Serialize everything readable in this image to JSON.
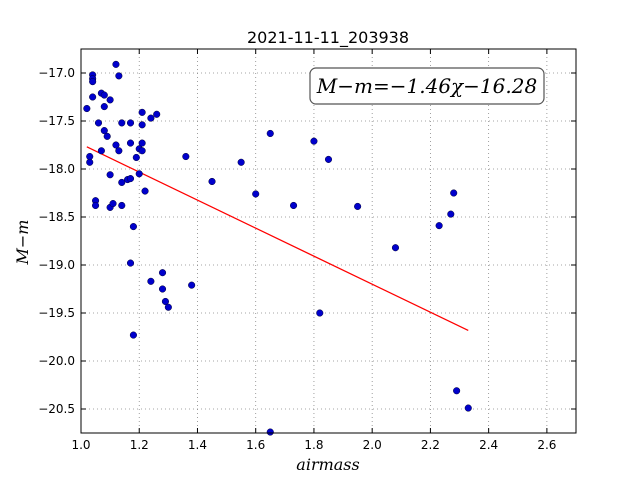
{
  "chart_data": {
    "type": "scatter",
    "title": "2021-11-11_203938",
    "xlabel": "airmass",
    "ylabel": "M−m",
    "xlim": [
      1.0,
      2.7
    ],
    "ylim": [
      -20.75,
      -16.75
    ],
    "y_inverted": true,
    "grid": true,
    "xticks": [
      "1.0",
      "1.2",
      "1.4",
      "1.6",
      "1.8",
      "2.0",
      "2.2",
      "2.4",
      "2.6"
    ],
    "yticks": [
      "−17.0",
      "−17.5",
      "−18.0",
      "−18.5",
      "−19.0",
      "−19.5",
      "−20.0",
      "−20.5"
    ],
    "annotation": "M−m=−1.46χ−16.28",
    "fit": {
      "slope": -1.46,
      "intercept": -16.28,
      "x_range": [
        1.02,
        2.33
      ],
      "color": "#ff0000"
    },
    "point_color": "#0000cc",
    "points": [
      [
        1.02,
        -17.37
      ],
      [
        1.03,
        -17.93
      ],
      [
        1.03,
        -17.87
      ],
      [
        1.04,
        -17.25
      ],
      [
        1.04,
        -17.02
      ],
      [
        1.04,
        -17.06
      ],
      [
        1.04,
        -17.09
      ],
      [
        1.05,
        -18.33
      ],
      [
        1.05,
        -18.38
      ],
      [
        1.06,
        -17.52
      ],
      [
        1.07,
        -17.81
      ],
      [
        1.07,
        -17.21
      ],
      [
        1.08,
        -17.23
      ],
      [
        1.08,
        -17.35
      ],
      [
        1.08,
        -17.6
      ],
      [
        1.09,
        -17.66
      ],
      [
        1.1,
        -17.28
      ],
      [
        1.1,
        -18.06
      ],
      [
        1.1,
        -18.4
      ],
      [
        1.11,
        -18.36
      ],
      [
        1.12,
        -16.91
      ],
      [
        1.12,
        -17.75
      ],
      [
        1.13,
        -17.03
      ],
      [
        1.13,
        -17.81
      ],
      [
        1.14,
        -17.52
      ],
      [
        1.14,
        -18.38
      ],
      [
        1.14,
        -18.14
      ],
      [
        1.16,
        -18.11
      ],
      [
        1.17,
        -17.52
      ],
      [
        1.17,
        -17.73
      ],
      [
        1.17,
        -18.1
      ],
      [
        1.17,
        -18.98
      ],
      [
        1.18,
        -19.73
      ],
      [
        1.18,
        -18.6
      ],
      [
        1.19,
        -17.88
      ],
      [
        1.2,
        -17.79
      ],
      [
        1.2,
        -18.05
      ],
      [
        1.21,
        -17.81
      ],
      [
        1.21,
        -17.73
      ],
      [
        1.21,
        -17.41
      ],
      [
        1.21,
        -17.54
      ],
      [
        1.22,
        -18.23
      ],
      [
        1.24,
        -17.47
      ],
      [
        1.24,
        -19.17
      ],
      [
        1.26,
        -17.43
      ],
      [
        1.28,
        -19.08
      ],
      [
        1.28,
        -19.25
      ],
      [
        1.29,
        -19.38
      ],
      [
        1.3,
        -19.44
      ],
      [
        1.36,
        -17.87
      ],
      [
        1.38,
        -19.21
      ],
      [
        1.45,
        -18.13
      ],
      [
        1.55,
        -17.93
      ],
      [
        1.6,
        -18.26
      ],
      [
        1.65,
        -17.63
      ],
      [
        1.65,
        -20.74
      ],
      [
        1.73,
        -18.38
      ],
      [
        1.8,
        -17.71
      ],
      [
        1.82,
        -19.5
      ],
      [
        1.85,
        -17.9
      ],
      [
        1.95,
        -18.39
      ],
      [
        2.08,
        -18.82
      ],
      [
        2.23,
        -18.59
      ],
      [
        2.27,
        -18.47
      ],
      [
        2.28,
        -18.25
      ],
      [
        2.29,
        -20.31
      ],
      [
        2.33,
        -20.49
      ]
    ]
  }
}
